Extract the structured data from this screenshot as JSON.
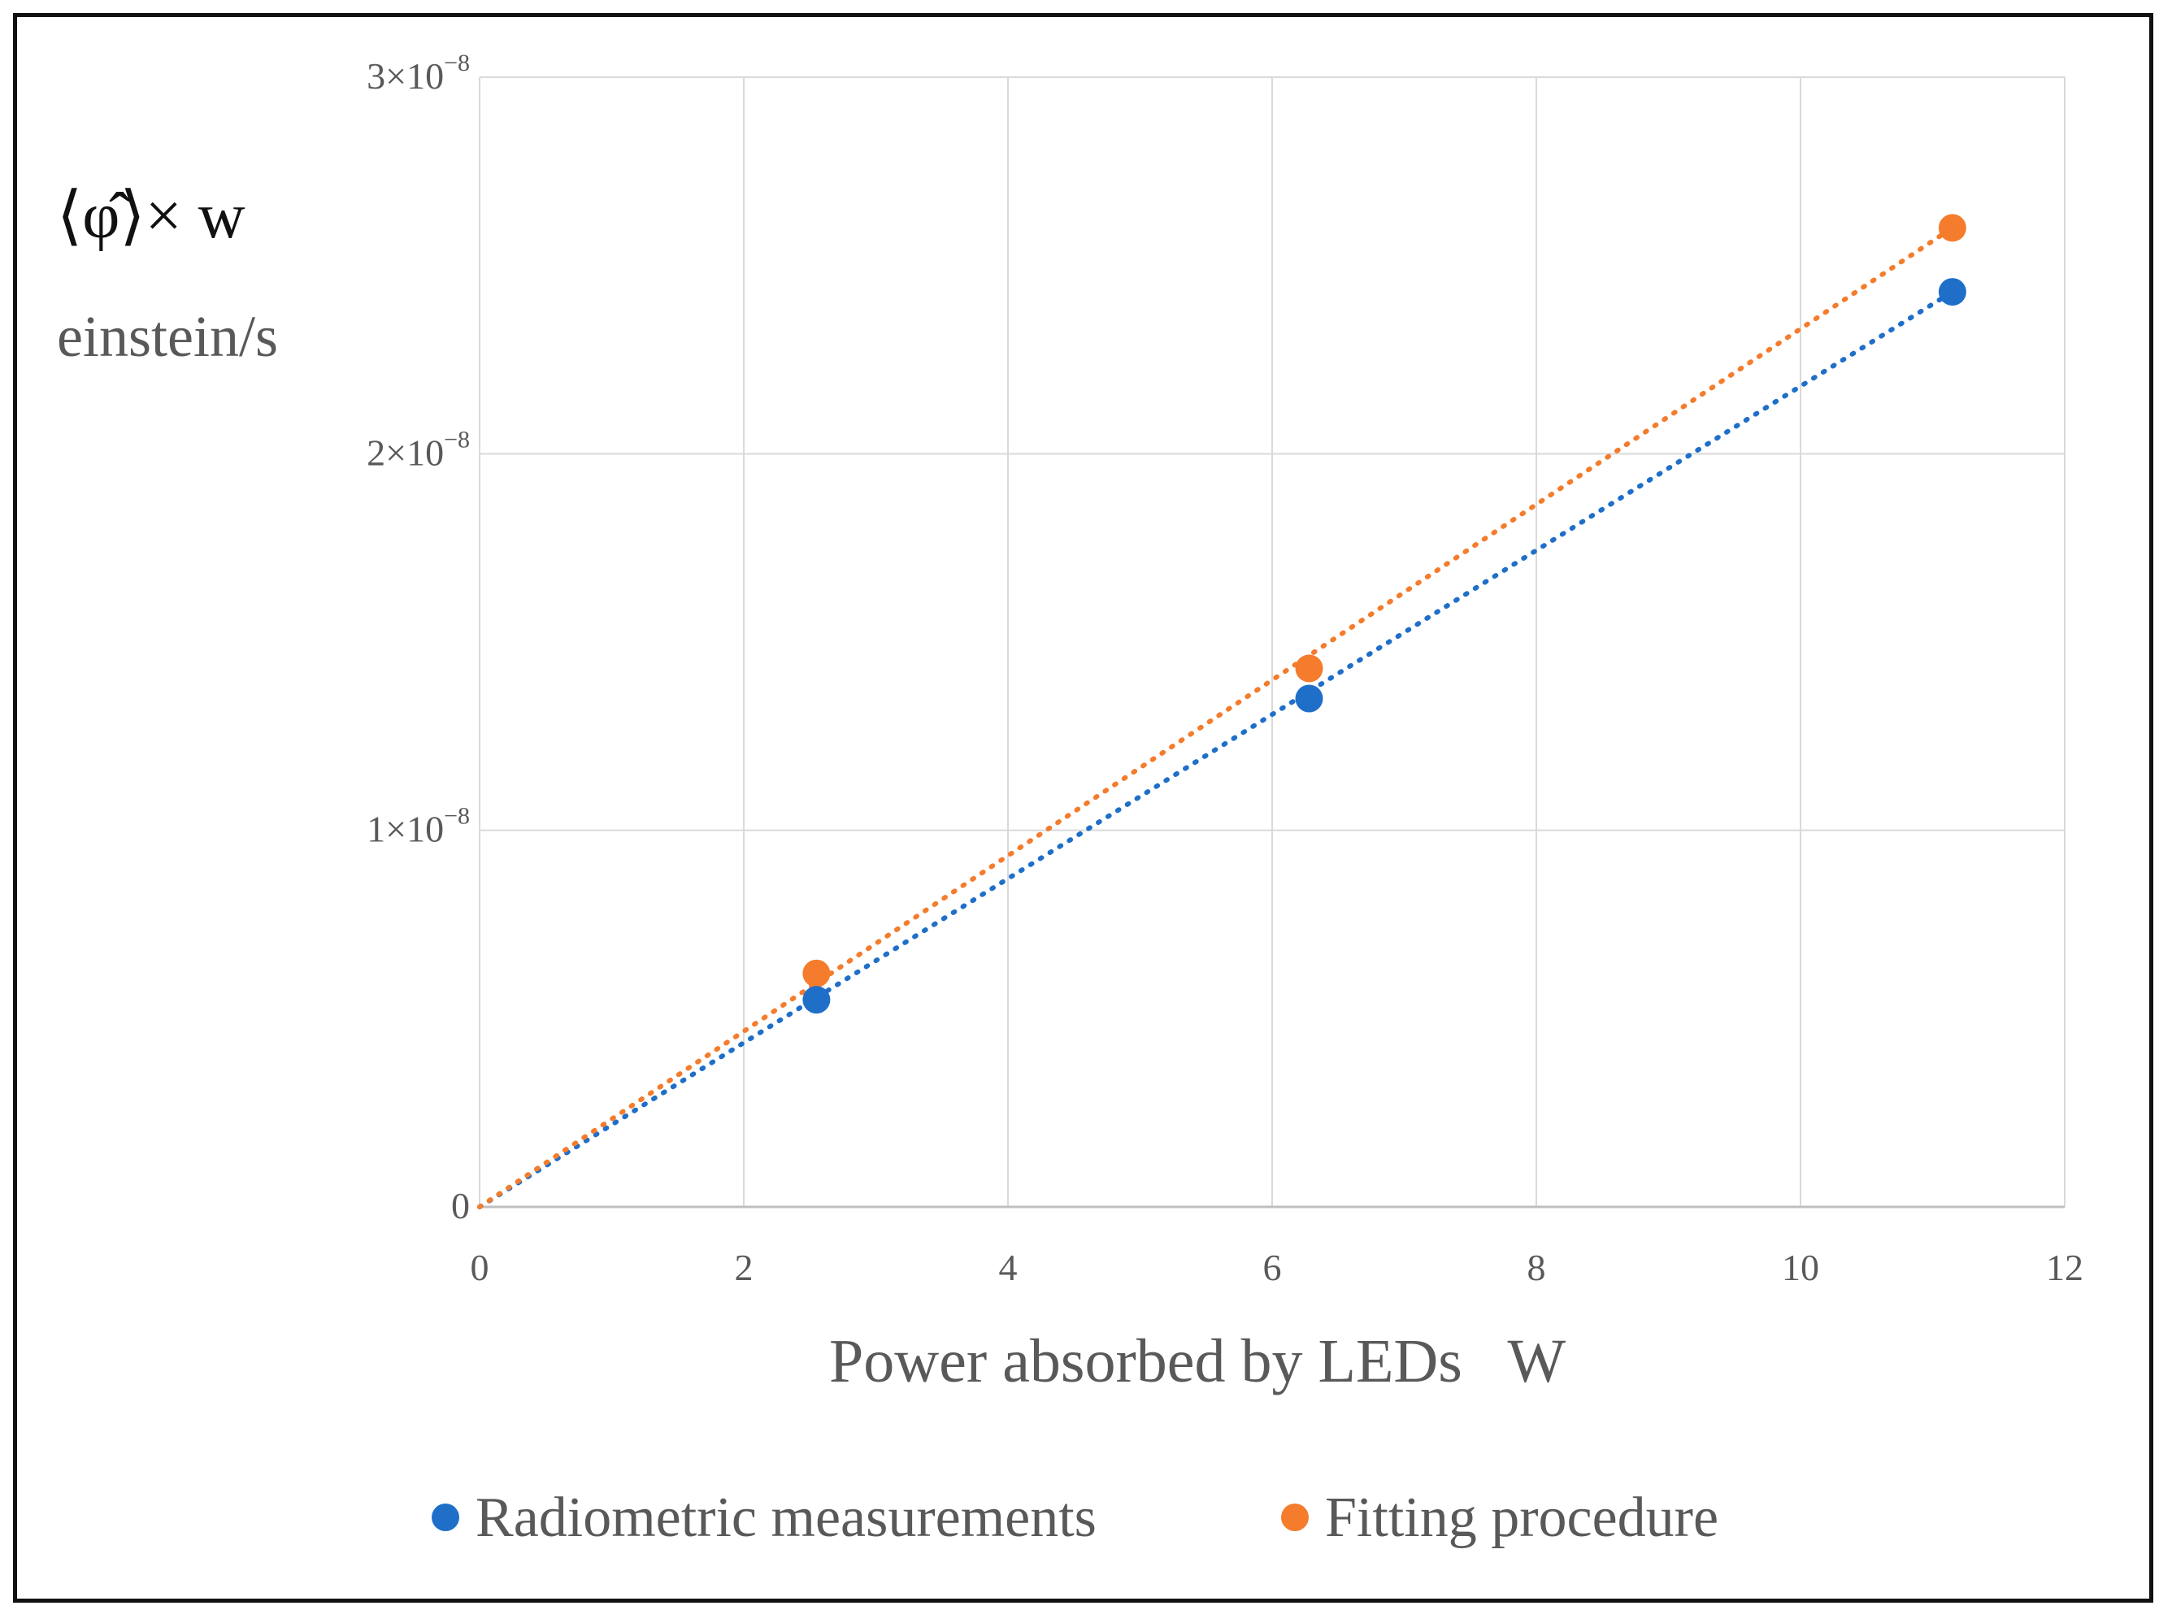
{
  "chart_data": {
    "type": "scatter",
    "title": "",
    "xlabel": "Power absorbed by LEDs   W",
    "ylabel_symbol": "⟨φ̂⟩× w",
    "ylabel_unit": "einstein/s",
    "xlim": [
      0,
      12
    ],
    "ylim": [
      0,
      3e-08
    ],
    "x_ticks": [
      0,
      2,
      4,
      6,
      8,
      10,
      12
    ],
    "x_tick_labels": [
      "0",
      "2",
      "4",
      "6",
      "8",
      "10",
      "12"
    ],
    "y_ticks": [
      0,
      1e-08,
      2e-08,
      3e-08
    ],
    "y_tick_labels": [
      {
        "base": "0",
        "exp": ""
      },
      {
        "base": "1×10",
        "exp": "−8"
      },
      {
        "base": "2×10",
        "exp": "−8"
      },
      {
        "base": "3×10",
        "exp": "−8"
      }
    ],
    "grid": true,
    "legend_position": "bottom-center",
    "series": [
      {
        "name": "Radiometric measurements",
        "color": "#1f6fc9",
        "x": [
          2.55,
          6.28,
          11.15
        ],
        "y": [
          5.5e-09,
          1.35e-08,
          2.43e-08
        ],
        "trendline": {
          "x": [
            0,
            11.15
          ],
          "y": [
            0,
            2.43e-08
          ],
          "style": "dotted"
        }
      },
      {
        "name": "Fitting procedure",
        "color": "#f47c2c",
        "x": [
          2.55,
          6.28,
          11.15
        ],
        "y": [
          6.2e-09,
          1.43e-08,
          2.6e-08
        ],
        "trendline": {
          "x": [
            0,
            11.15
          ],
          "y": [
            0,
            2.6e-08
          ],
          "style": "dotted"
        }
      }
    ]
  }
}
